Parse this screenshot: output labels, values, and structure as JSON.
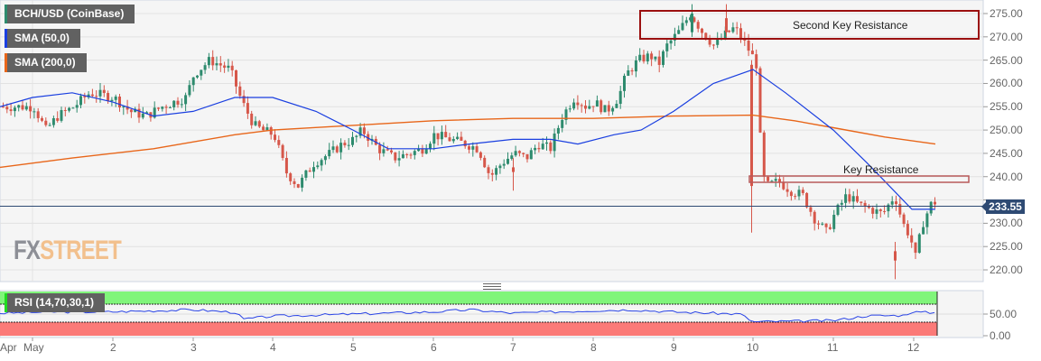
{
  "chart_data": {
    "type": "candlestick",
    "title": "BCH/USD (CoinBase)",
    "symbol": "BCH/USD",
    "exchange": "CoinBase",
    "indicators": [
      {
        "name": "SMA (50,0)",
        "color": "#1a3fe0"
      },
      {
        "name": "SMA (200,0)",
        "color": "#e8661a"
      },
      {
        "name": "RSI (14,70,30,1)",
        "color": "#2a44e6"
      }
    ],
    "xlabel": "",
    "ylabel": "",
    "x_ticks": [
      "Apr",
      "May",
      "2",
      "3",
      "4",
      "5",
      "6",
      "7",
      "8",
      "9",
      "10",
      "11",
      "12"
    ],
    "y_ticks": [
      275.0,
      270.0,
      265.0,
      260.0,
      255.0,
      250.0,
      245.0,
      240.0,
      235.0,
      230.0,
      225.0,
      220.0
    ],
    "ylim": [
      217,
      277
    ],
    "last_price": 233.55,
    "rsi_ticks": [
      50.0,
      0.0
    ],
    "rsi_bands": {
      "overbought": 70,
      "oversold": 30
    },
    "annotations": [
      {
        "label": "Second Key Resistance",
        "price_low": 269.5,
        "price_high": 275.5,
        "color": "#9b1010"
      },
      {
        "label": "Key Resistance",
        "price_low": 238.4,
        "price_high": 239.6,
        "color": "#b85a5a"
      }
    ],
    "approx_daily_close": [
      {
        "day": "May 1",
        "close": 257
      },
      {
        "day": "2",
        "close": 256
      },
      {
        "day": "3",
        "close": 262
      },
      {
        "day": "4",
        "close": 239
      },
      {
        "day": "5",
        "close": 247
      },
      {
        "day": "6",
        "close": 245
      },
      {
        "day": "7",
        "close": 243
      },
      {
        "day": "8",
        "close": 254
      },
      {
        "day": "9",
        "close": 270
      },
      {
        "day": "10",
        "close": 238
      },
      {
        "day": "11",
        "close": 230
      },
      {
        "day": "12",
        "close": 233.55
      }
    ],
    "sma50_approx": [
      {
        "day": "May 1",
        "value": 258
      },
      {
        "day": "2",
        "value": 255
      },
      {
        "day": "3",
        "value": 255
      },
      {
        "day": "4",
        "value": 257
      },
      {
        "day": "5",
        "value": 251
      },
      {
        "day": "6",
        "value": 246
      },
      {
        "day": "7",
        "value": 248
      },
      {
        "day": "8",
        "value": 248
      },
      {
        "day": "9",
        "value": 253
      },
      {
        "day": "10",
        "value": 262
      },
      {
        "day": "11",
        "value": 248
      },
      {
        "day": "12",
        "value": 233
      }
    ],
    "sma200_approx": [
      {
        "day": "May 1",
        "value": 243
      },
      {
        "day": "2",
        "value": 245
      },
      {
        "day": "3",
        "value": 247
      },
      {
        "day": "4",
        "value": 250
      },
      {
        "day": "5",
        "value": 251
      },
      {
        "day": "6",
        "value": 251.5
      },
      {
        "day": "7",
        "value": 252
      },
      {
        "day": "8",
        "value": 252
      },
      {
        "day": "9",
        "value": 252.5
      },
      {
        "day": "10",
        "value": 253
      },
      {
        "day": "11",
        "value": 249
      },
      {
        "day": "12",
        "value": 247
      }
    ]
  },
  "legend": {
    "symbol_label": "BCH/USD (CoinBase)",
    "sma50_label": "SMA (50,0)",
    "sma200_label": "SMA (200,0)",
    "rsi_label": "RSI (14,70,30,1)"
  },
  "axis": {
    "price_labels": [
      "275.00",
      "270.00",
      "265.00",
      "260.00",
      "255.00",
      "250.00",
      "245.00",
      "240.00",
      "235.00",
      "230.00",
      "225.00",
      "220.00"
    ],
    "rsi_labels": [
      "50.00",
      "0.00"
    ],
    "date_labels": [
      "Apr",
      "May",
      "2",
      "3",
      "4",
      "5",
      "6",
      "7",
      "8",
      "9",
      "10",
      "11",
      "12"
    ]
  },
  "price_badge": "233.55",
  "annotations": {
    "second_key_resistance": "Second Key Resistance",
    "key_resistance": "Key Resistance"
  },
  "watermark": {
    "fx": "FX",
    "street": "STREET"
  },
  "colors": {
    "up": "#2e8b6e",
    "down": "#d6574a",
    "sma50": "#1a3fe0",
    "sma200": "#e8661a",
    "rsi_line": "#2a44e6",
    "rsi_overbought": "#80f57a",
    "rsi_oversold": "#fb7a78",
    "badge": "#2e4a73"
  }
}
